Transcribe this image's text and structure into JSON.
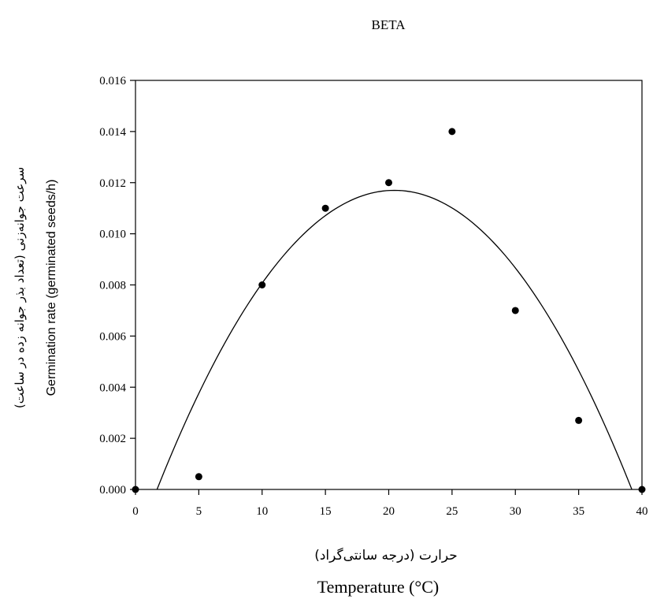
{
  "chart_data": {
    "type": "scatter",
    "title": "BETA",
    "xlabel": "Temperature (°C)",
    "xlabel_fa": "حرارت (درجه سانتی‌گراد)",
    "ylabel": "Germination rate (germinated seeds/h)",
    "ylabel_fa": "سرعت جوانه‌زنی (تعداد بذر جوانه زده در ساعت)",
    "xlim": [
      0,
      40
    ],
    "ylim": [
      0,
      0.016
    ],
    "x_ticks": [
      0,
      5,
      10,
      15,
      20,
      25,
      30,
      35,
      40
    ],
    "x_tick_labels": [
      "0",
      "5",
      "10",
      "15",
      "20",
      "25",
      "30",
      "35",
      "40"
    ],
    "y_ticks": [
      0,
      0.002,
      0.004,
      0.006,
      0.008,
      0.01,
      0.012,
      0.014,
      0.016
    ],
    "y_tick_labels": [
      "0.000",
      "0.002",
      "0.004",
      "0.006",
      "0.008",
      "0.010",
      "0.012",
      "0.014",
      "0.016"
    ],
    "grid": false,
    "points": [
      {
        "x": 0,
        "y": 0.0
      },
      {
        "x": 5,
        "y": 0.0005
      },
      {
        "x": 10,
        "y": 0.008
      },
      {
        "x": 15,
        "y": 0.011
      },
      {
        "x": 20,
        "y": 0.012
      },
      {
        "x": 25,
        "y": 0.014
      },
      {
        "x": 30,
        "y": 0.007
      },
      {
        "x": 35,
        "y": 0.0027
      },
      {
        "x": 40,
        "y": 0.0
      }
    ],
    "fit_curve": {
      "type": "quadratic",
      "x_start": 1.7,
      "x_end": 39.2,
      "peak_x": 20.45,
      "peak_y": 0.0117
    },
    "colors": {
      "axis": "#000000",
      "points": "#000000",
      "curve": "#000000"
    }
  }
}
